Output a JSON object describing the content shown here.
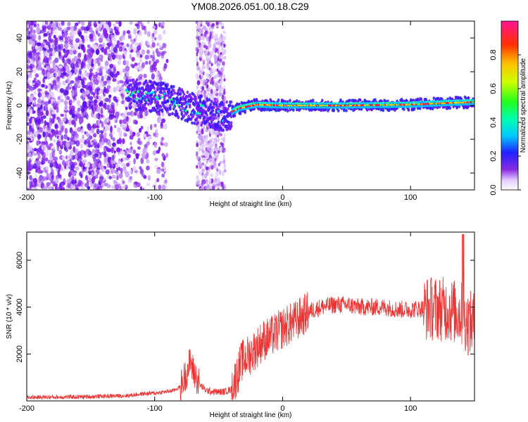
{
  "title": "YM08.2026.051.00.18.C29",
  "colors": {
    "snr_line": "#ee3333",
    "spectrum_blue": "#7a1cff",
    "ridge": "#e8242a"
  },
  "chart_data": [
    {
      "type": "heatmap",
      "xlabel": "Height of straight line (km)",
      "ylabel": "Frequency (Hz)",
      "xlim": [
        -200,
        150
      ],
      "ylim": [
        -50,
        50
      ],
      "xticks": [
        -200,
        -100,
        0,
        100
      ],
      "yticks": [
        -40,
        -20,
        0,
        20,
        40
      ],
      "colorbar": {
        "label": "Normalized spectral amplitude",
        "range": [
          0.0,
          1.0
        ],
        "ticks": [
          "0.0",
          "0.2",
          "0.4",
          "0.6",
          "0.8"
        ],
        "colormap": "rainbow (white-purple-blue-cyan-green-yellow-red-magenta)"
      },
      "ridge": [
        {
          "x": -120,
          "f": 7
        },
        {
          "x": -110,
          "f": 6
        },
        {
          "x": -100,
          "f": 5
        },
        {
          "x": -90,
          "f": 4
        },
        {
          "x": -80,
          "f": 1
        },
        {
          "x": -70,
          "f": -2
        },
        {
          "x": -60,
          "f": -3
        },
        {
          "x": -50,
          "f": -6
        },
        {
          "x": -45,
          "f": -8
        },
        {
          "x": -40,
          "f": -4
        },
        {
          "x": -35,
          "f": -2
        },
        {
          "x": -30,
          "f": -1
        },
        {
          "x": -20,
          "f": 0.5
        },
        {
          "x": 0,
          "f": 0
        },
        {
          "x": 50,
          "f": 0
        },
        {
          "x": 100,
          "f": 0.5
        },
        {
          "x": 130,
          "f": 1.5
        },
        {
          "x": 150,
          "f": 2
        }
      ]
    },
    {
      "type": "line",
      "xlabel": "Height of straight line (km)",
      "ylabel": "SNR (10 * v/v)",
      "xlim": [
        -200,
        150
      ],
      "ylim": [
        0,
        7200
      ],
      "xticks": [
        -200,
        -100,
        0,
        100
      ],
      "yticks": [
        2000,
        4000,
        6000
      ],
      "series": [
        {
          "x": [
            -200,
            -180,
            -160,
            -140,
            -120,
            -110,
            -100,
            -90,
            -85,
            -80,
            -75,
            -72,
            -70,
            -65,
            -60,
            -55,
            -50,
            -45,
            -40,
            -35,
            -32,
            -30,
            -25,
            -20,
            -15,
            -10,
            -5,
            0,
            10,
            20,
            30,
            40,
            50,
            60,
            70,
            80,
            90,
            100,
            110,
            120,
            130,
            140,
            145,
            150
          ],
          "values": [
            150,
            160,
            170,
            200,
            230,
            300,
            330,
            400,
            450,
            600,
            1200,
            1700,
            1300,
            700,
            450,
            400,
            380,
            400,
            500,
            1200,
            1700,
            1800,
            2000,
            2300,
            2600,
            2700,
            2900,
            3100,
            3400,
            3800,
            4000,
            4100,
            4100,
            4000,
            4000,
            4000,
            3900,
            3900,
            3950,
            3950,
            3900,
            3700,
            3300,
            3300
          ]
        }
      ]
    }
  ]
}
